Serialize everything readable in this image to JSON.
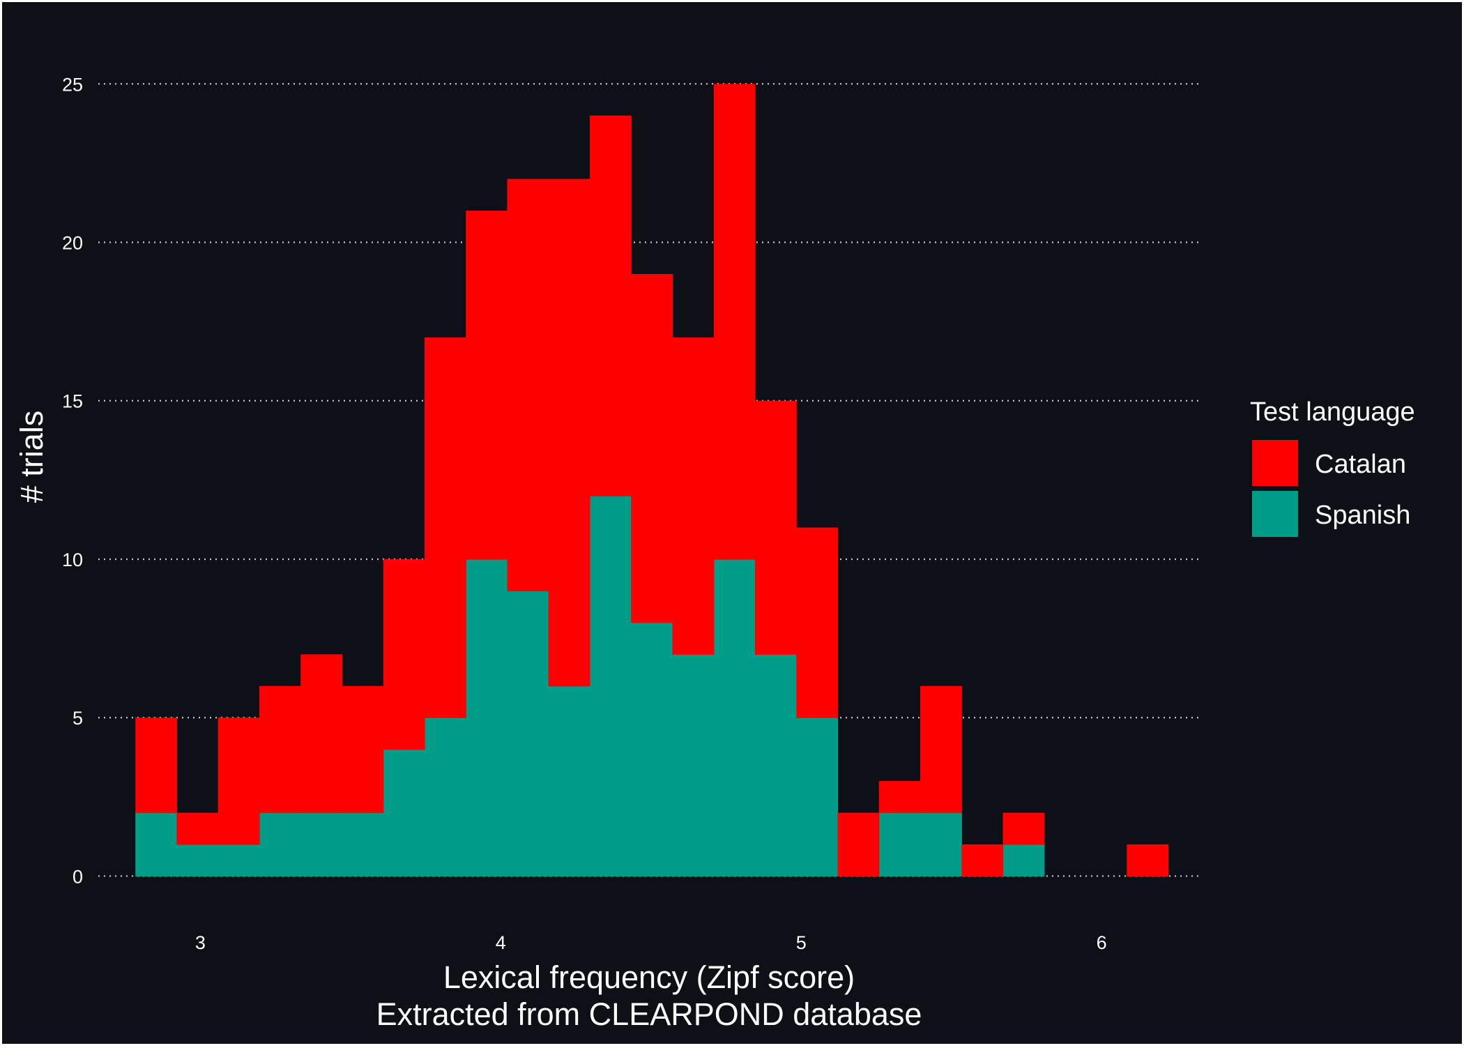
{
  "chart_data": {
    "type": "bar",
    "stacked": true,
    "xlabel": "Lexical frequency (Zipf score)",
    "xlabel_line2": "Extracted from CLEARPOND database",
    "ylabel": "# trials",
    "xlim": [
      2.6,
      6.35
    ],
    "ylim": [
      -1.2,
      26.7
    ],
    "x_ticks": [
      3,
      4,
      5,
      6
    ],
    "y_ticks": [
      0,
      5,
      10,
      15,
      20,
      25
    ],
    "grid": "horizontal dotted",
    "legend_title": "Test language",
    "legend_position": "right",
    "bin_width": 0.1375,
    "bin_centers": [
      2.8525,
      2.99,
      3.1275,
      3.265,
      3.4025,
      3.54,
      3.6775,
      3.815,
      3.9525,
      4.09,
      4.2275,
      4.365,
      4.5025,
      4.64,
      4.7775,
      4.915,
      5.0525,
      5.19,
      5.3275,
      5.465,
      5.6025,
      5.74,
      5.8775,
      6.015,
      6.1525
    ],
    "series": [
      {
        "name": "Spanish",
        "color": "#009e88",
        "values": [
          2,
          1,
          1,
          2,
          2,
          2,
          4,
          5,
          10,
          9,
          6,
          12,
          8,
          7,
          10,
          7,
          5,
          0,
          2,
          2,
          0,
          1,
          0,
          0,
          0
        ]
      },
      {
        "name": "Catalan",
        "color": "#ff0000",
        "values": [
          3,
          1,
          4,
          4,
          5,
          4,
          6,
          12,
          11,
          13,
          16,
          12,
          11,
          10,
          15,
          8,
          6,
          2,
          1,
          4,
          1,
          1,
          0,
          0,
          1
        ]
      }
    ],
    "legend_order": [
      "Catalan",
      "Spanish"
    ]
  },
  "colors": {
    "background": "#0d1017",
    "grid": "#c8c8c8",
    "text": "#ffffff"
  }
}
